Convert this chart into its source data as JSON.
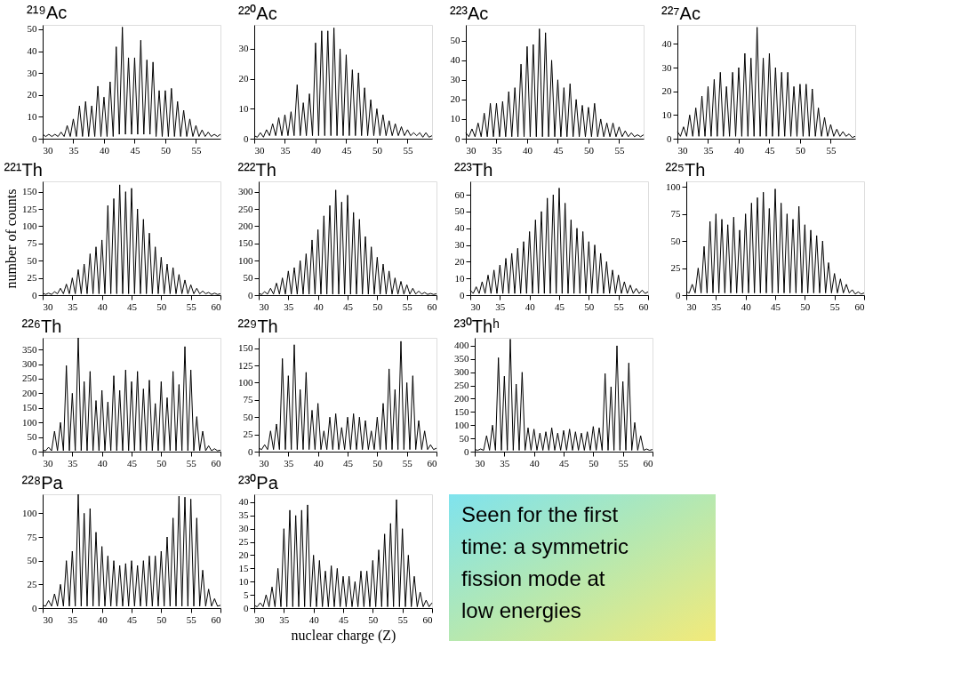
{
  "chart_data": [
    {
      "type": "line",
      "title": "²¹⁹Ac",
      "color": "#000000",
      "xlim": [
        30,
        59
      ],
      "xticks": [
        30,
        35,
        40,
        45,
        50,
        55
      ],
      "ylim": [
        0,
        52
      ],
      "yticks": [
        0,
        10,
        20,
        30,
        40,
        50
      ],
      "x": [
        30,
        30.5,
        31,
        31.5,
        32,
        32.5,
        33,
        33.5,
        34,
        34.5,
        35,
        35.5,
        36,
        36.5,
        37,
        37.5,
        38,
        38.5,
        39,
        39.5,
        40,
        40.5,
        41,
        41.5,
        42,
        42.5,
        43,
        43.5,
        44,
        44.5,
        45,
        45.5,
        46,
        46.5,
        47,
        47.5,
        48,
        48.5,
        49,
        49.5,
        50,
        50.5,
        51,
        51.5,
        52,
        52.5,
        53,
        53.5,
        54,
        54.5,
        55,
        55.5,
        56,
        56.5,
        57,
        57.5,
        58,
        58.5,
        59
      ],
      "values": [
        2,
        1,
        2,
        1,
        2,
        1,
        3,
        1,
        6,
        1,
        9,
        1,
        15,
        1,
        17,
        1,
        15,
        1,
        24,
        1,
        19,
        1,
        26,
        1,
        42,
        2,
        51,
        2,
        37,
        2,
        37,
        2,
        45,
        2,
        36,
        2,
        35,
        1,
        22,
        1,
        22,
        1,
        23,
        1,
        17,
        1,
        13,
        1,
        9,
        1,
        6,
        1,
        4,
        1,
        3,
        1,
        2,
        1,
        2
      ]
    },
    {
      "type": "line",
      "title": "²²⁰Ac",
      "color": "#000000",
      "xlim": [
        30,
        59
      ],
      "xticks": [
        30,
        35,
        40,
        45,
        50,
        55
      ],
      "ylim": [
        0,
        38
      ],
      "yticks": [
        0,
        10,
        20,
        30
      ],
      "x": [
        30,
        30.5,
        31,
        31.5,
        32,
        32.5,
        33,
        33.5,
        34,
        34.5,
        35,
        35.5,
        36,
        36.5,
        37,
        37.5,
        38,
        38.5,
        39,
        39.5,
        40,
        40.5,
        41,
        41.5,
        42,
        42.5,
        43,
        43.5,
        44,
        44.5,
        45,
        45.5,
        46,
        46.5,
        47,
        47.5,
        48,
        48.5,
        49,
        49.5,
        50,
        50.5,
        51,
        51.5,
        52,
        52.5,
        53,
        53.5,
        54,
        54.5,
        55,
        55.5,
        56,
        56.5,
        57,
        57.5,
        58,
        58.5,
        59
      ],
      "values": [
        1,
        0.5,
        2,
        0.5,
        3,
        1,
        5,
        1,
        7,
        1,
        8,
        1,
        9,
        1,
        18,
        1,
        12,
        1,
        15,
        1,
        32,
        1,
        36,
        1,
        36,
        1,
        37,
        1,
        30,
        1,
        28,
        1,
        23,
        1,
        22,
        1,
        17,
        1,
        13,
        1,
        10,
        1,
        8,
        1,
        6,
        1,
        5,
        1,
        4,
        1,
        3,
        1,
        2,
        1,
        2,
        0.5,
        2,
        0.5,
        1
      ]
    },
    {
      "type": "line",
      "title": "²²³Ac",
      "color": "#000000",
      "xlim": [
        30,
        59
      ],
      "xticks": [
        30,
        35,
        40,
        45,
        50,
        55
      ],
      "ylim": [
        0,
        58
      ],
      "yticks": [
        0,
        10,
        20,
        30,
        40,
        50
      ],
      "x": [
        30,
        30.5,
        31,
        31.5,
        32,
        32.5,
        33,
        33.5,
        34,
        34.5,
        35,
        35.5,
        36,
        36.5,
        37,
        37.5,
        38,
        38.5,
        39,
        39.5,
        40,
        40.5,
        41,
        41.5,
        42,
        42.5,
        43,
        43.5,
        44,
        44.5,
        45,
        45.5,
        46,
        46.5,
        47,
        47.5,
        48,
        48.5,
        49,
        49.5,
        50,
        50.5,
        51,
        51.5,
        52,
        52.5,
        53,
        53.5,
        54,
        54.5,
        55,
        55.5,
        56,
        56.5,
        57,
        57.5,
        58,
        58.5,
        59
      ],
      "values": [
        3,
        1,
        5,
        1,
        8,
        1,
        13,
        1,
        18,
        1,
        18,
        1,
        19,
        1,
        24,
        1,
        26,
        1,
        38,
        1,
        47,
        1,
        48,
        1,
        56,
        1,
        54,
        1,
        40,
        1,
        30,
        1,
        26,
        1,
        28,
        1,
        20,
        1,
        17,
        1,
        16,
        1,
        18,
        1,
        10,
        1,
        8,
        1,
        8,
        1,
        6,
        1,
        4,
        1,
        3,
        1,
        2,
        1,
        2
      ]
    },
    {
      "type": "line",
      "title": "²²⁷Ac",
      "color": "#000000",
      "xlim": [
        30,
        59
      ],
      "xticks": [
        30,
        35,
        40,
        45,
        50,
        55
      ],
      "ylim": [
        0,
        48
      ],
      "yticks": [
        0,
        10,
        20,
        30,
        40
      ],
      "x": [
        30,
        30.5,
        31,
        31.5,
        32,
        32.5,
        33,
        33.5,
        34,
        34.5,
        35,
        35.5,
        36,
        36.5,
        37,
        37.5,
        38,
        38.5,
        39,
        39.5,
        40,
        40.5,
        41,
        41.5,
        42,
        42.5,
        43,
        43.5,
        44,
        44.5,
        45,
        45.5,
        46,
        46.5,
        47,
        47.5,
        48,
        48.5,
        49,
        49.5,
        50,
        50.5,
        51,
        51.5,
        52,
        52.5,
        53,
        53.5,
        54,
        54.5,
        55,
        55.5,
        56,
        56.5,
        57,
        57.5,
        58,
        58.5,
        59
      ],
      "values": [
        3,
        1,
        5,
        1,
        10,
        1,
        13,
        1,
        18,
        1,
        22,
        1,
        25,
        1,
        28,
        1,
        22,
        1,
        28,
        1,
        30,
        1,
        36,
        1,
        34,
        1,
        47,
        1,
        34,
        1,
        36,
        1,
        30,
        1,
        28,
        1,
        28,
        1,
        22,
        1,
        23,
        1,
        23,
        1,
        21,
        1,
        13,
        1,
        9,
        1,
        6,
        1,
        4,
        1,
        3,
        1,
        2,
        0.5,
        1
      ]
    },
    {
      "type": "line",
      "title": "²²¹Th",
      "ylabel": "number of counts",
      "color": "#000000",
      "xlim": [
        30,
        60
      ],
      "xticks": [
        30,
        35,
        40,
        45,
        50,
        55,
        60
      ],
      "ylim": [
        0,
        165
      ],
      "yticks": [
        0,
        25,
        50,
        75,
        100,
        125,
        150
      ],
      "x": [
        30,
        30.5,
        31,
        31.5,
        32,
        32.5,
        33,
        33.5,
        34,
        34.5,
        35,
        35.5,
        36,
        36.5,
        37,
        37.5,
        38,
        38.5,
        39,
        39.5,
        40,
        40.5,
        41,
        41.5,
        42,
        42.5,
        43,
        43.5,
        44,
        44.5,
        45,
        45.5,
        46,
        46.5,
        47,
        47.5,
        48,
        48.5,
        49,
        49.5,
        50,
        50.5,
        51,
        51.5,
        52,
        52.5,
        53,
        53.5,
        54,
        54.5,
        55,
        55.5,
        56,
        56.5,
        57,
        57.5,
        58,
        58.5,
        59,
        59.5,
        60
      ],
      "values": [
        3,
        1,
        3,
        1,
        5,
        2,
        10,
        2,
        16,
        2,
        25,
        2,
        37,
        2,
        45,
        2,
        60,
        2,
        70,
        2,
        80,
        2,
        130,
        2,
        140,
        2,
        160,
        2,
        150,
        2,
        155,
        2,
        125,
        2,
        110,
        2,
        90,
        2,
        70,
        2,
        55,
        2,
        45,
        2,
        40,
        2,
        30,
        2,
        22,
        2,
        15,
        2,
        10,
        2,
        6,
        2,
        4,
        1,
        3,
        1,
        2
      ]
    },
    {
      "type": "line",
      "title": "²²²Th",
      "color": "#000000",
      "xlim": [
        30,
        60
      ],
      "xticks": [
        30,
        35,
        40,
        45,
        50,
        55,
        60
      ],
      "ylim": [
        0,
        330
      ],
      "yticks": [
        0,
        50,
        100,
        150,
        200,
        250,
        300
      ],
      "x": [
        30,
        30.5,
        31,
        31.5,
        32,
        32.5,
        33,
        33.5,
        34,
        34.5,
        35,
        35.5,
        36,
        36.5,
        37,
        37.5,
        38,
        38.5,
        39,
        39.5,
        40,
        40.5,
        41,
        41.5,
        42,
        42.5,
        43,
        43.5,
        44,
        44.5,
        45,
        45.5,
        46,
        46.5,
        47,
        47.5,
        48,
        48.5,
        49,
        49.5,
        50,
        50.5,
        51,
        51.5,
        52,
        52.5,
        53,
        53.5,
        54,
        54.5,
        55,
        55.5,
        56,
        56.5,
        57,
        57.5,
        58,
        58.5,
        59,
        59.5,
        60
      ],
      "values": [
        5,
        2,
        10,
        3,
        20,
        3,
        35,
        3,
        50,
        3,
        70,
        3,
        80,
        3,
        100,
        3,
        120,
        3,
        160,
        3,
        190,
        3,
        230,
        3,
        260,
        3,
        305,
        3,
        270,
        3,
        290,
        3,
        240,
        3,
        220,
        3,
        170,
        3,
        140,
        3,
        110,
        3,
        90,
        3,
        70,
        3,
        50,
        3,
        40,
        3,
        30,
        3,
        20,
        3,
        12,
        3,
        8,
        2,
        5,
        2,
        4
      ]
    },
    {
      "type": "line",
      "title": "²²³Th",
      "color": "#000000",
      "xlim": [
        30,
        60
      ],
      "xticks": [
        30,
        35,
        40,
        45,
        50,
        55,
        60
      ],
      "ylim": [
        0,
        68
      ],
      "yticks": [
        0,
        10,
        20,
        30,
        40,
        50,
        60
      ],
      "x": [
        30,
        30.5,
        31,
        31.5,
        32,
        32.5,
        33,
        33.5,
        34,
        34.5,
        35,
        35.5,
        36,
        36.5,
        37,
        37.5,
        38,
        38.5,
        39,
        39.5,
        40,
        40.5,
        41,
        41.5,
        42,
        42.5,
        43,
        43.5,
        44,
        44.5,
        45,
        45.5,
        46,
        46.5,
        47,
        47.5,
        48,
        48.5,
        49,
        49.5,
        50,
        50.5,
        51,
        51.5,
        52,
        52.5,
        53,
        53.5,
        54,
        54.5,
        55,
        55.5,
        56,
        56.5,
        57,
        57.5,
        58,
        58.5,
        59,
        59.5,
        60
      ],
      "values": [
        3,
        1,
        5,
        1,
        8,
        1,
        12,
        1,
        15,
        1,
        18,
        1,
        22,
        1,
        25,
        1,
        28,
        1,
        32,
        1,
        38,
        1,
        45,
        1,
        50,
        1,
        58,
        1,
        60,
        1,
        64,
        1,
        55,
        1,
        45,
        1,
        40,
        1,
        38,
        1,
        32,
        1,
        30,
        1,
        25,
        1,
        20,
        1,
        15,
        1,
        12,
        1,
        8,
        1,
        6,
        1,
        4,
        1,
        3,
        1,
        2
      ]
    },
    {
      "type": "line",
      "title": "²²⁵Th",
      "color": "#000000",
      "xlim": [
        30,
        60
      ],
      "xticks": [
        30,
        35,
        40,
        45,
        50,
        55,
        60
      ],
      "ylim": [
        0,
        105
      ],
      "yticks": [
        0,
        25,
        50,
        75,
        100
      ],
      "x": [
        30,
        30.5,
        31,
        31.5,
        32,
        32.5,
        33,
        33.5,
        34,
        34.5,
        35,
        35.5,
        36,
        36.5,
        37,
        37.5,
        38,
        38.5,
        39,
        39.5,
        40,
        40.5,
        41,
        41.5,
        42,
        42.5,
        43,
        43.5,
        44,
        44.5,
        45,
        45.5,
        46,
        46.5,
        47,
        47.5,
        48,
        48.5,
        49,
        49.5,
        50,
        50.5,
        51,
        51.5,
        52,
        52.5,
        53,
        53.5,
        54,
        54.5,
        55,
        55.5,
        56,
        56.5,
        57,
        57.5,
        58,
        58.5,
        59,
        59.5,
        60
      ],
      "values": [
        3,
        2,
        10,
        2,
        25,
        2,
        45,
        2,
        68,
        2,
        75,
        2,
        70,
        2,
        65,
        2,
        72,
        2,
        60,
        2,
        75,
        2,
        85,
        2,
        90,
        2,
        95,
        2,
        80,
        2,
        98,
        2,
        85,
        2,
        75,
        2,
        70,
        2,
        82,
        2,
        65,
        2,
        60,
        2,
        55,
        2,
        50,
        2,
        30,
        2,
        20,
        2,
        15,
        2,
        10,
        2,
        5,
        1,
        3,
        1,
        2
      ]
    },
    {
      "type": "line",
      "title": "²²⁶Th",
      "color": "#000000",
      "xlim": [
        30,
        60
      ],
      "xticks": [
        30,
        35,
        40,
        45,
        50,
        55,
        60
      ],
      "ylim": [
        0,
        390
      ],
      "yticks": [
        0,
        50,
        100,
        150,
        200,
        250,
        300,
        350
      ],
      "x": [
        30,
        30.5,
        31,
        31.5,
        32,
        32.5,
        33,
        33.5,
        34,
        34.5,
        35,
        35.5,
        36,
        36.5,
        37,
        37.5,
        38,
        38.5,
        39,
        39.5,
        40,
        40.5,
        41,
        41.5,
        42,
        42.5,
        43,
        43.5,
        44,
        44.5,
        45,
        45.5,
        46,
        46.5,
        47,
        47.5,
        48,
        48.5,
        49,
        49.5,
        50,
        50.5,
        51,
        51.5,
        52,
        52.5,
        53,
        53.5,
        54,
        54.5,
        55,
        55.5,
        56,
        56.5,
        57,
        57.5,
        58,
        58.5,
        59,
        59.5,
        60
      ],
      "values": [
        5,
        3,
        15,
        3,
        70,
        3,
        100,
        3,
        295,
        3,
        200,
        3,
        390,
        3,
        240,
        3,
        275,
        3,
        175,
        3,
        210,
        3,
        170,
        3,
        260,
        3,
        210,
        3,
        280,
        3,
        240,
        3,
        275,
        3,
        215,
        3,
        245,
        3,
        165,
        3,
        240,
        3,
        185,
        3,
        275,
        3,
        230,
        3,
        360,
        3,
        280,
        3,
        120,
        3,
        70,
        3,
        20,
        3,
        10,
        3,
        5
      ]
    },
    {
      "type": "line",
      "title": "²²⁹Th",
      "color": "#000000",
      "xlim": [
        30,
        60
      ],
      "xticks": [
        30,
        35,
        40,
        45,
        50,
        55,
        60
      ],
      "ylim": [
        0,
        165
      ],
      "yticks": [
        0,
        25,
        50,
        75,
        100,
        125,
        150
      ],
      "x": [
        30,
        30.5,
        31,
        31.5,
        32,
        32.5,
        33,
        33.5,
        34,
        34.5,
        35,
        35.5,
        36,
        36.5,
        37,
        37.5,
        38,
        38.5,
        39,
        39.5,
        40,
        40.5,
        41,
        41.5,
        42,
        42.5,
        43,
        43.5,
        44,
        44.5,
        45,
        45.5,
        46,
        46.5,
        47,
        47.5,
        48,
        48.5,
        49,
        49.5,
        50,
        50.5,
        51,
        51.5,
        52,
        52.5,
        53,
        53.5,
        54,
        54.5,
        55,
        55.5,
        56,
        56.5,
        57,
        57.5,
        58,
        58.5,
        59,
        59.5,
        60
      ],
      "values": [
        5,
        3,
        10,
        3,
        30,
        3,
        40,
        3,
        135,
        3,
        110,
        3,
        155,
        3,
        90,
        3,
        115,
        3,
        60,
        3,
        70,
        3,
        30,
        3,
        50,
        3,
        55,
        3,
        35,
        3,
        50,
        3,
        55,
        3,
        50,
        3,
        45,
        3,
        30,
        3,
        50,
        3,
        70,
        3,
        120,
        3,
        90,
        3,
        160,
        3,
        100,
        3,
        110,
        3,
        45,
        3,
        30,
        3,
        10,
        3,
        5
      ]
    },
    {
      "type": "line",
      "title": "²³⁰Thʰ",
      "color": "#000000",
      "xlim": [
        30,
        60
      ],
      "xticks": [
        30,
        35,
        40,
        45,
        50,
        55,
        60
      ],
      "ylim": [
        0,
        430
      ],
      "yticks": [
        0,
        50,
        100,
        150,
        200,
        250,
        300,
        350,
        400
      ],
      "x": [
        30,
        30.5,
        31,
        31.5,
        32,
        32.5,
        33,
        33.5,
        34,
        34.5,
        35,
        35.5,
        36,
        36.5,
        37,
        37.5,
        38,
        38.5,
        39,
        39.5,
        40,
        40.5,
        41,
        41.5,
        42,
        42.5,
        43,
        43.5,
        44,
        44.5,
        45,
        45.5,
        46,
        46.5,
        47,
        47.5,
        48,
        48.5,
        49,
        49.5,
        50,
        50.5,
        51,
        51.5,
        52,
        52.5,
        53,
        53.5,
        54,
        54.5,
        55,
        55.5,
        56,
        56.5,
        57,
        57.5,
        58,
        58.5,
        59,
        59.5,
        60
      ],
      "values": [
        8,
        5,
        10,
        5,
        60,
        5,
        100,
        5,
        355,
        5,
        285,
        5,
        425,
        5,
        255,
        5,
        300,
        5,
        90,
        5,
        85,
        5,
        70,
        5,
        75,
        5,
        90,
        5,
        70,
        5,
        80,
        5,
        85,
        5,
        75,
        5,
        70,
        5,
        75,
        5,
        95,
        5,
        90,
        5,
        295,
        5,
        245,
        5,
        400,
        5,
        265,
        5,
        335,
        5,
        110,
        5,
        60,
        5,
        10,
        5,
        8
      ]
    },
    {
      "type": "line",
      "title": "²²⁸Pa",
      "color": "#000000",
      "xlim": [
        30,
        60
      ],
      "xticks": [
        30,
        35,
        40,
        45,
        50,
        55,
        60
      ],
      "ylim": [
        0,
        120
      ],
      "yticks": [
        0,
        25,
        50,
        75,
        100
      ],
      "x": [
        30,
        30.5,
        31,
        31.5,
        32,
        32.5,
        33,
        33.5,
        34,
        34.5,
        35,
        35.5,
        36,
        36.5,
        37,
        37.5,
        38,
        38.5,
        39,
        39.5,
        40,
        40.5,
        41,
        41.5,
        42,
        42.5,
        43,
        43.5,
        44,
        44.5,
        45,
        45.5,
        46,
        46.5,
        47,
        47.5,
        48,
        48.5,
        49,
        49.5,
        50,
        50.5,
        51,
        51.5,
        52,
        52.5,
        53,
        53.5,
        54,
        54.5,
        55,
        55.5,
        56,
        56.5,
        57,
        57.5,
        58,
        58.5,
        59,
        59.5,
        60
      ],
      "values": [
        3,
        2,
        8,
        2,
        15,
        2,
        25,
        2,
        50,
        2,
        60,
        2,
        120,
        2,
        100,
        2,
        105,
        2,
        80,
        2,
        65,
        2,
        55,
        2,
        50,
        2,
        45,
        2,
        47,
        2,
        50,
        2,
        45,
        2,
        50,
        2,
        55,
        2,
        55,
        2,
        60,
        2,
        75,
        2,
        95,
        2,
        118,
        2,
        117,
        2,
        115,
        2,
        95,
        2,
        40,
        2,
        20,
        2,
        10,
        2,
        3
      ]
    },
    {
      "type": "line",
      "title": "²³⁰Pa",
      "xlabel": "nuclear charge (Z)",
      "color": "#000000",
      "xlim": [
        30,
        60
      ],
      "xticks": [
        30,
        35,
        40,
        45,
        50,
        55,
        60
      ],
      "ylim": [
        0,
        43
      ],
      "yticks": [
        0,
        5,
        10,
        15,
        20,
        25,
        30,
        35,
        40
      ],
      "x": [
        30,
        30.5,
        31,
        31.5,
        32,
        32.5,
        33,
        33.5,
        34,
        34.5,
        35,
        35.5,
        36,
        36.5,
        37,
        37.5,
        38,
        38.5,
        39,
        39.5,
        40,
        40.5,
        41,
        41.5,
        42,
        42.5,
        43,
        43.5,
        44,
        44.5,
        45,
        45.5,
        46,
        46.5,
        47,
        47.5,
        48,
        48.5,
        49,
        49.5,
        50,
        50.5,
        51,
        51.5,
        52,
        52.5,
        53,
        53.5,
        54,
        54.5,
        55,
        55.5,
        56,
        56.5,
        57,
        57.5,
        58,
        58.5,
        59,
        59.5,
        60
      ],
      "values": [
        1,
        0.5,
        2,
        0.5,
        5,
        0.5,
        8,
        0.5,
        15,
        0.5,
        30,
        0.5,
        37,
        0.5,
        35,
        0.5,
        37,
        0.5,
        39,
        0.5,
        20,
        0.5,
        18,
        0.5,
        14,
        0.5,
        16,
        0.5,
        15,
        0.5,
        12,
        0.5,
        12,
        0.5,
        10,
        0.5,
        14,
        0.5,
        14,
        0.5,
        18,
        0.5,
        22,
        0.5,
        28,
        0.5,
        32,
        0.5,
        41,
        0.5,
        30,
        0.5,
        20,
        0.5,
        12,
        0.5,
        6,
        0.5,
        3,
        0.5,
        2
      ]
    },
    {
      "type": "other",
      "annotations": [
        "Seen for the first time: a symmetric fission mode at low energies"
      ]
    }
  ]
}
